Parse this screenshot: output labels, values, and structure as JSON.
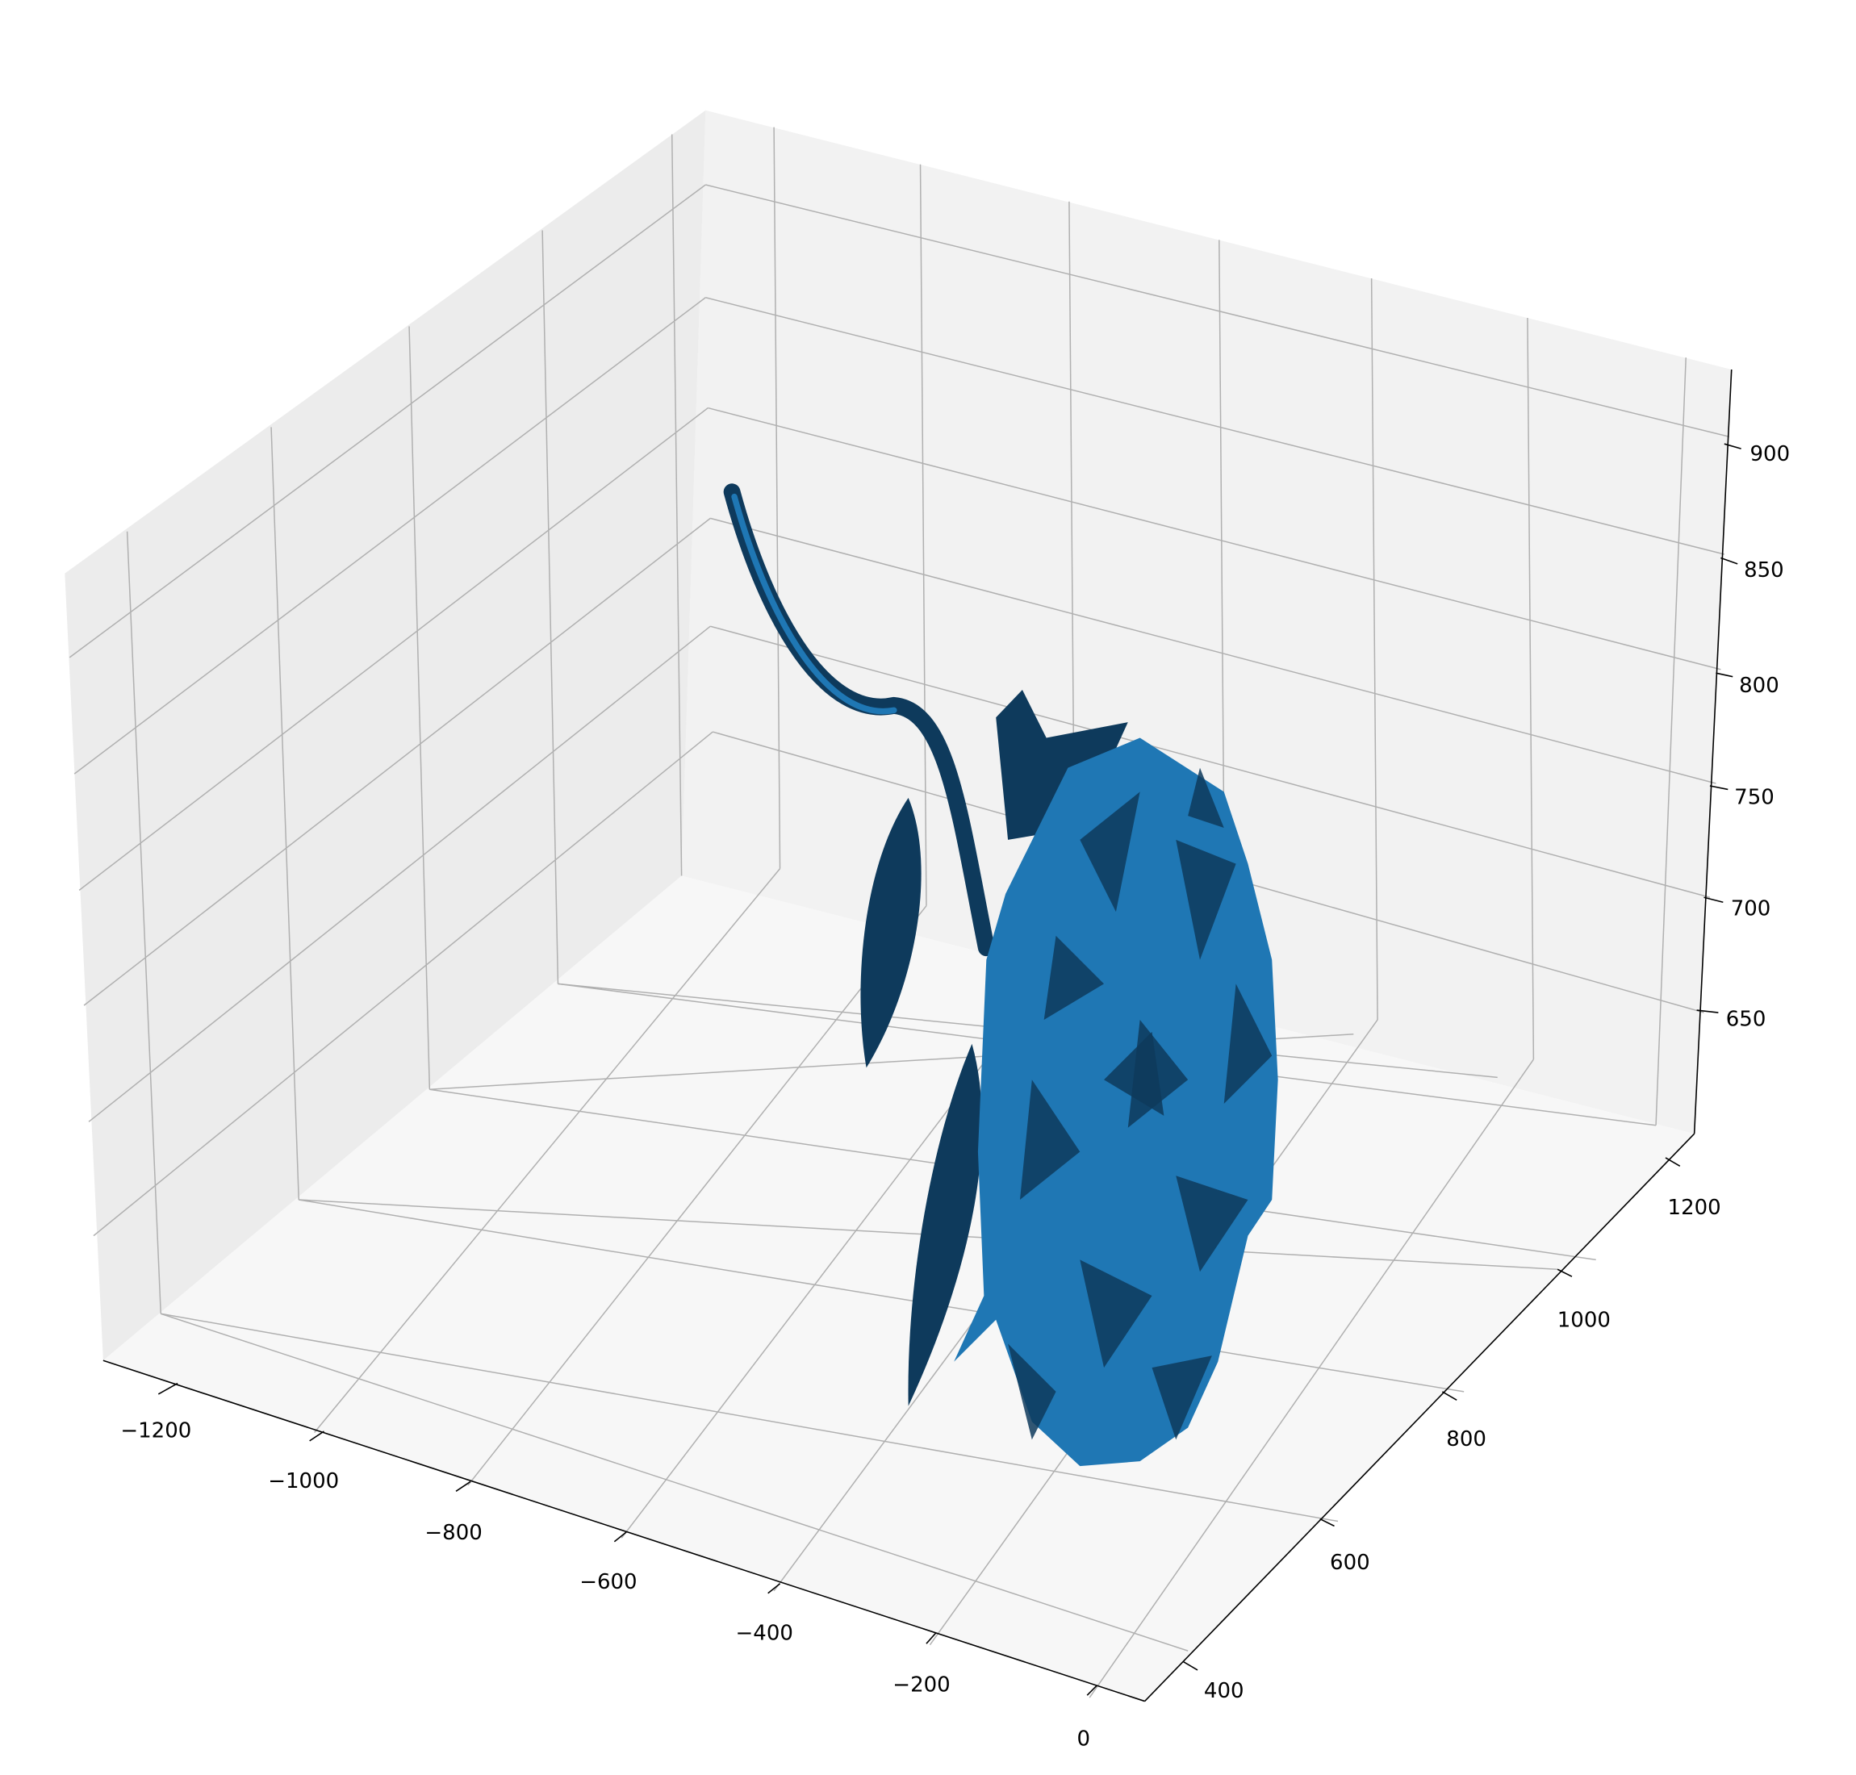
{
  "chart_data": {
    "type": "3d-surface",
    "title": "",
    "xlabel": "",
    "ylabel": "",
    "zlabel": "",
    "grid": true,
    "surface_color": "#1f77b4",
    "surface_dark_color": "#0e3a5c",
    "pane_colors": {
      "back": "#f2f2f2",
      "side": "#ececec",
      "floor": "#f7f7f7"
    },
    "description": "",
    "x_axis": {
      "ticks": [
        -1200,
        -1000,
        -800,
        -600,
        -400,
        -200,
        0
      ],
      "tick_labels": [
        "−1200",
        "−1000",
        "−800",
        "−600",
        "−400",
        "−200",
        "0"
      ]
    },
    "y_axis": {
      "ticks": [
        400,
        600,
        800,
        1000,
        1200
      ],
      "tick_labels": [
        "400",
        "600",
        "800",
        "1000",
        "1200"
      ]
    },
    "z_axis": {
      "ticks": [
        650,
        700,
        750,
        800,
        850,
        900
      ],
      "tick_labels": [
        "650",
        "700",
        "750",
        "800",
        "850",
        "900"
      ]
    }
  }
}
